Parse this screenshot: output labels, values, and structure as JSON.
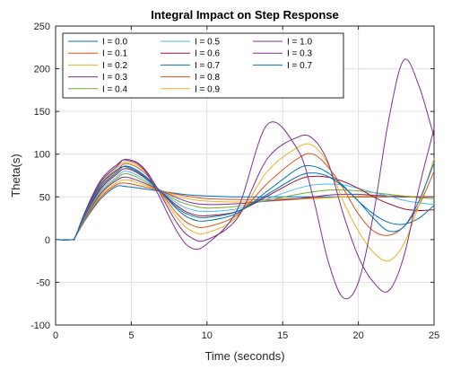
{
  "chart_data": {
    "type": "line",
    "title": "Integral Impact on Step Response",
    "xlabel": "Time (seconds)",
    "ylabel": "Theta(s)",
    "xlim": [
      0,
      25
    ],
    "ylim": [
      -100,
      250
    ],
    "xticks": [
      "0",
      "5",
      "10",
      "15",
      "20",
      "25"
    ],
    "yticks": [
      "-100",
      "-50",
      "0",
      "50",
      "100",
      "150",
      "200",
      "250"
    ],
    "grid": true,
    "legend": {
      "placement": "top-left",
      "columns": 3
    },
    "x": [
      0,
      1.1,
      1.3,
      2,
      3,
      4,
      4.7,
      6,
      8,
      9,
      10,
      12,
      14,
      16,
      17,
      18,
      19,
      20,
      21,
      22,
      23,
      24,
      25
    ],
    "series": [
      {
        "name": "I = 0.0",
        "color": "#0072BD",
        "values": [
          0,
          0,
          3,
          24,
          48,
          62,
          62,
          59,
          54,
          52,
          51,
          50,
          50,
          50,
          50,
          50,
          50,
          50,
          50,
          50,
          50,
          50,
          50
        ]
      },
      {
        "name": "I = 0.1",
        "color": "#D95319",
        "values": [
          0,
          0,
          3,
          25,
          50,
          64,
          66,
          61,
          53,
          50,
          48,
          47,
          47,
          48,
          49,
          49,
          50,
          50,
          50,
          50,
          50,
          50,
          50
        ]
      },
      {
        "name": "I = 0.2",
        "color": "#EDB120",
        "values": [
          0,
          0,
          3,
          26,
          52,
          66,
          70,
          63,
          51,
          47,
          45,
          44,
          45,
          47,
          48,
          49,
          50,
          51,
          51,
          51,
          51,
          50,
          50
        ]
      },
      {
        "name": "I = 0.3",
        "color": "#7E2F8E",
        "values": [
          0,
          0,
          3,
          27,
          54,
          69,
          73,
          65,
          49,
          43,
          41,
          42,
          45,
          48,
          50,
          52,
          53,
          53,
          52,
          51,
          50,
          50,
          50
        ]
      },
      {
        "name": "I = 0.4",
        "color": "#77AC30",
        "values": [
          0,
          0,
          3,
          28,
          56,
          71,
          77,
          67,
          46,
          40,
          37,
          39,
          46,
          53,
          56,
          58,
          58,
          57,
          55,
          53,
          51,
          49,
          48
        ]
      },
      {
        "name": "I = 0.5",
        "color": "#4DBEEE",
        "values": [
          0,
          0,
          3,
          29,
          58,
          73,
          80,
          69,
          43,
          35,
          33,
          36,
          48,
          60,
          64,
          65,
          64,
          60,
          55,
          51,
          46,
          43,
          41
        ]
      },
      {
        "name": "I = 0.6",
        "color": "#A2142F",
        "values": [
          0,
          0,
          3,
          30,
          60,
          76,
          83,
          71,
          40,
          30,
          28,
          33,
          51,
          70,
          74,
          73,
          68,
          60,
          50,
          42,
          36,
          34,
          35
        ]
      },
      {
        "name": "I = 0.7",
        "color": "#0072BD",
        "values": [
          0,
          0,
          3,
          31,
          62,
          78,
          86,
          73,
          36,
          24,
          22,
          31,
          57,
          83,
          86,
          78,
          63,
          45,
          30,
          20,
          18,
          25,
          40
        ]
      },
      {
        "name": "I = 0.8",
        "color": "#D95319",
        "values": [
          0,
          0,
          3,
          32,
          64,
          80,
          89,
          76,
          31,
          17,
          15,
          29,
          66,
          95,
          100,
          85,
          60,
          30,
          10,
          5,
          15,
          40,
          80
        ]
      },
      {
        "name": "I = 0.9",
        "color": "#EDB120",
        "values": [
          0,
          0,
          3,
          33,
          66,
          83,
          91,
          78,
          26,
          10,
          8,
          27,
          80,
          108,
          110,
          88,
          45,
          10,
          -15,
          -25,
          -5,
          40,
          95
        ]
      },
      {
        "name": "I = 1.0",
        "color": "#7E2F8E",
        "values": [
          0,
          0,
          3,
          34,
          68,
          85,
          94,
          80,
          20,
          2,
          0,
          25,
          95,
          120,
          118,
          90,
          30,
          -20,
          -50,
          -60,
          -20,
          60,
          130
        ]
      },
      {
        "name": "I = 0.3",
        "color": "#7E2F8E",
        "values": [
          0,
          0,
          3,
          35,
          70,
          87,
          93,
          78,
          10,
          -10,
          -5,
          35,
          135,
          105,
          50,
          -25,
          -68,
          -50,
          30,
          140,
          210,
          180,
          120
        ]
      },
      {
        "name": "I = 0.7",
        "color": "#0072BD",
        "values": [
          0,
          0,
          3,
          33,
          65,
          81,
          85,
          72,
          38,
          28,
          26,
          33,
          53,
          74,
          78,
          74,
          62,
          45,
          25,
          10,
          15,
          45,
          90
        ]
      }
    ]
  }
}
